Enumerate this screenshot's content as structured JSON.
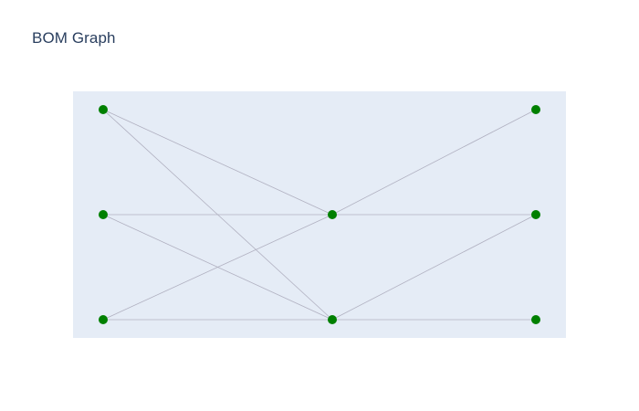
{
  "title": "BOM Graph",
  "colors": {
    "plot_background": "#e5ecf6",
    "node": "#008000",
    "edge": "#b0b0c0",
    "title": "#2a3f5f"
  },
  "graph": {
    "nodes": [
      {
        "id": "n1",
        "col": 0,
        "row": 0
      },
      {
        "id": "n2",
        "col": 0,
        "row": 1
      },
      {
        "id": "n3",
        "col": 0,
        "row": 2
      },
      {
        "id": "n4",
        "col": 1,
        "row": 1
      },
      {
        "id": "n5",
        "col": 1,
        "row": 2
      },
      {
        "id": "n6",
        "col": 2,
        "row": 0
      },
      {
        "id": "n7",
        "col": 2,
        "row": 1
      },
      {
        "id": "n8",
        "col": 2,
        "row": 2
      }
    ],
    "edges": [
      [
        "n1",
        "n4"
      ],
      [
        "n1",
        "n5"
      ],
      [
        "n2",
        "n4"
      ],
      [
        "n2",
        "n5"
      ],
      [
        "n3",
        "n4"
      ],
      [
        "n3",
        "n5"
      ],
      [
        "n4",
        "n6"
      ],
      [
        "n4",
        "n7"
      ],
      [
        "n5",
        "n7"
      ],
      [
        "n5",
        "n8"
      ]
    ]
  }
}
